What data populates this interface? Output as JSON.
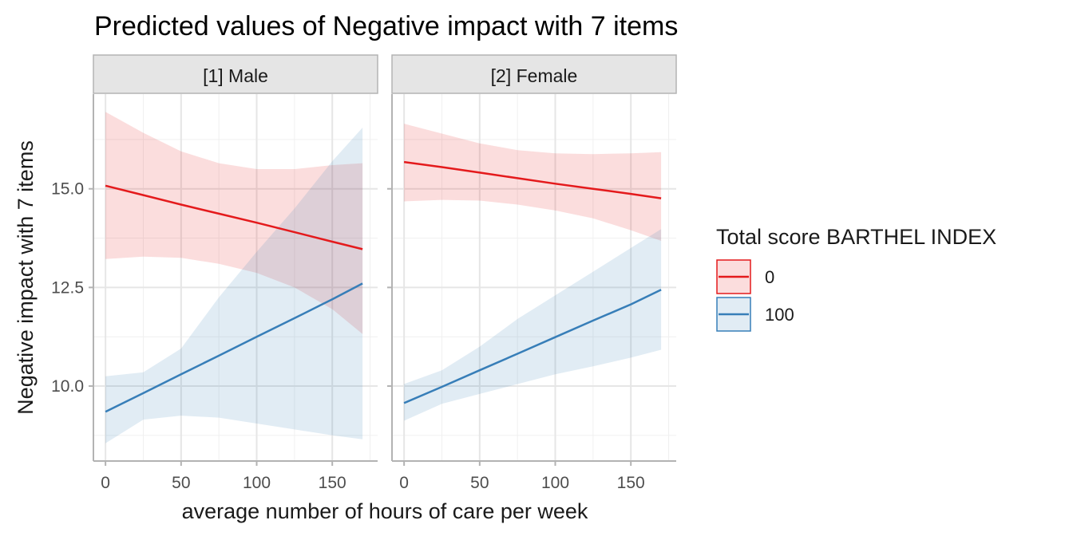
{
  "chart_data": {
    "type": "line",
    "title": "Predicted values of Negative impact with 7 items",
    "xlabel": "average number of hours of care per week",
    "ylabel": "Negative impact with 7 items",
    "xlim": [
      -8,
      180
    ],
    "ylim": [
      8.1,
      17.4
    ],
    "x_ticks": [
      0,
      50,
      100,
      150
    ],
    "x_tick_labels": [
      "0",
      "50",
      "100",
      "150"
    ],
    "y_ticks": [
      10.0,
      12.5,
      15.0
    ],
    "y_tick_labels": [
      "10.0",
      "12.5",
      "15.0"
    ],
    "grid": true,
    "legend": {
      "title": "Total score BARTHEL INDEX",
      "position": "right",
      "entries": [
        "0",
        "100"
      ]
    },
    "colors": {
      "0": "#e41a1c",
      "100": "#377eb8"
    },
    "facets": [
      {
        "label": "[1] Male",
        "series": [
          {
            "name": "0",
            "x": [
              0,
              25,
              50,
              75,
              100,
              125,
              150,
              170
            ],
            "y": [
              15.08,
              14.84,
              14.6,
              14.37,
              14.14,
              13.9,
              13.66,
              13.47
            ],
            "lower": [
              13.22,
              13.28,
              13.25,
              13.1,
              12.87,
              12.5,
              11.95,
              11.32
            ],
            "upper": [
              16.95,
              16.42,
              15.95,
              15.65,
              15.5,
              15.5,
              15.6,
              15.65
            ]
          },
          {
            "name": "100",
            "x": [
              0,
              25,
              50,
              75,
              100,
              125,
              150,
              170
            ],
            "y": [
              9.35,
              9.82,
              10.3,
              10.77,
              11.25,
              11.72,
              12.2,
              12.6
            ],
            "lower": [
              8.55,
              9.15,
              9.25,
              9.2,
              9.05,
              8.9,
              8.75,
              8.65
            ],
            "upper": [
              10.25,
              10.35,
              10.95,
              12.25,
              13.4,
              14.5,
              15.7,
              16.55
            ]
          }
        ]
      },
      {
        "label": "[2] Female",
        "series": [
          {
            "name": "0",
            "x": [
              0,
              25,
              50,
              75,
              100,
              125,
              150,
              170
            ],
            "y": [
              15.68,
              15.55,
              15.41,
              15.27,
              15.13,
              15.0,
              14.87,
              14.76
            ],
            "lower": [
              14.68,
              14.72,
              14.7,
              14.6,
              14.45,
              14.25,
              13.95,
              13.68
            ],
            "upper": [
              16.65,
              16.4,
              16.15,
              15.98,
              15.9,
              15.88,
              15.9,
              15.93
            ]
          },
          {
            "name": "100",
            "x": [
              0,
              25,
              50,
              75,
              100,
              125,
              150,
              170
            ],
            "y": [
              9.57,
              9.98,
              10.4,
              10.82,
              11.24,
              11.66,
              12.07,
              12.44
            ],
            "lower": [
              9.12,
              9.55,
              9.8,
              10.05,
              10.3,
              10.5,
              10.72,
              10.92
            ],
            "upper": [
              10.05,
              10.4,
              11.0,
              11.7,
              12.3,
              12.9,
              13.5,
              13.98
            ]
          }
        ]
      }
    ]
  }
}
